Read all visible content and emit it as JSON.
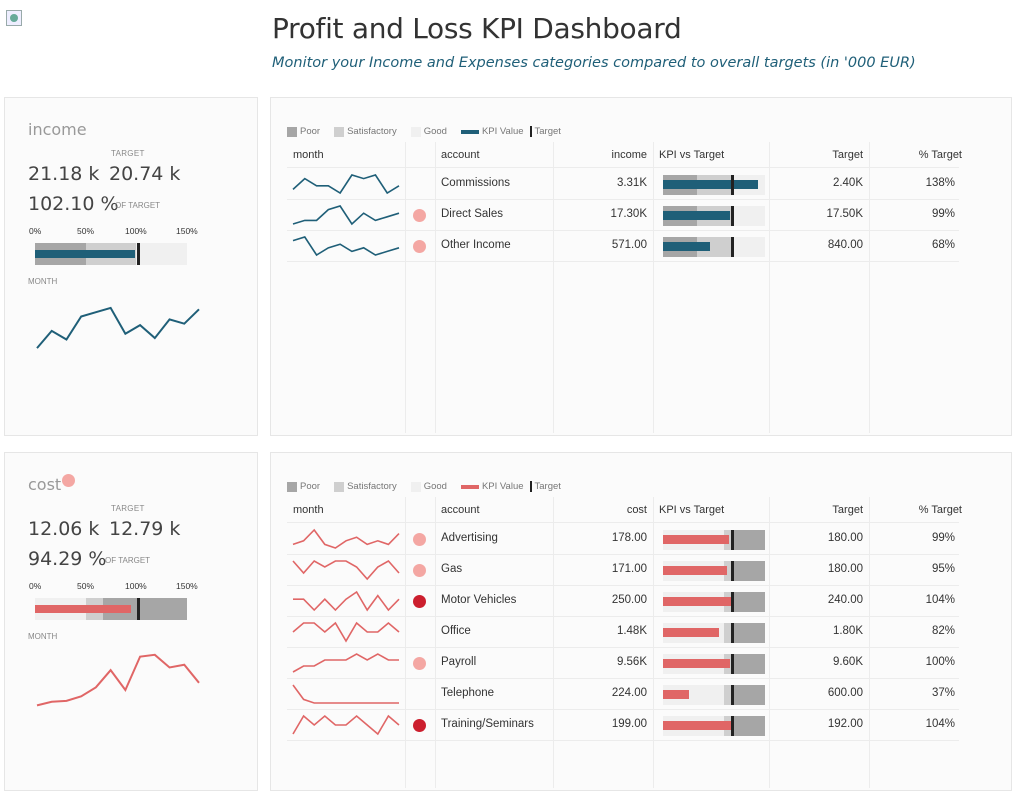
{
  "page": {
    "title": "Profit and Loss KPI Dashboard",
    "subtitle": "Monitor your Income and Expenses categories compared to overall targets (in '000 EUR)"
  },
  "colors": {
    "income": "#1f5f78",
    "cost": "#e06666",
    "poor": "#a6a6a6",
    "satisfactory": "#cfcfcf",
    "good": "#f0f0f0",
    "dot_light": "#f4a7a3",
    "dot_dark": "#cc1f2e"
  },
  "legend": {
    "poor": "Poor",
    "satisfactory": "Satisfactory",
    "good": "Good",
    "kpi_value": "KPI Value",
    "target": "Target"
  },
  "income_card": {
    "title": "income",
    "target_label": "TARGET",
    "value": "21.18 k",
    "target": "20.74 k",
    "pct": "102.10 %",
    "of_target": "OF TARGET",
    "ticks": [
      "0%",
      "50%",
      "100%",
      "150%"
    ],
    "month_label": "MONTH",
    "bullet": {
      "poor": 0.5,
      "satisfactory": 1.0,
      "value": 0.66,
      "target": 0.67
    },
    "trend": [
      30,
      42,
      36,
      52,
      55,
      58,
      40,
      46,
      37,
      50,
      47,
      57
    ]
  },
  "cost_card": {
    "title": "cost",
    "target_label": "TARGET",
    "value": "12.06 k",
    "target": "12.79 k",
    "pct": "94.29 %",
    "of_target": "OF TARGET",
    "ticks": [
      "0%",
      "50%",
      "100%",
      "150%"
    ],
    "month_label": "MONTH",
    "bullet": {
      "poor": 1.0,
      "satisfactory": 0.67,
      "value": 0.63,
      "target": 0.67
    },
    "trend": [
      40,
      44,
      45,
      50,
      60,
      79,
      57,
      94,
      96,
      82,
      85,
      65
    ]
  },
  "income_table": {
    "headers": {
      "month": "month",
      "account": "account",
      "value": "income",
      "kpi": "KPI vs Target",
      "target": "Target",
      "pct": "% Target"
    },
    "rows": [
      {
        "account": "Commissions",
        "value": "3.31K",
        "target": "2.40K",
        "pct": "138%",
        "dot": "",
        "bullet": {
          "poor": 0.33,
          "sat": 0.67,
          "good": 1.0,
          "value": 0.93,
          "target": 0.67
        },
        "spark": [
          3,
          6,
          4,
          4,
          2,
          7,
          6,
          7,
          2,
          4
        ]
      },
      {
        "account": "Direct Sales",
        "value": "17.30K",
        "target": "17.50K",
        "pct": "99%",
        "dot": "light",
        "bullet": {
          "poor": 0.33,
          "sat": 0.67,
          "good": 1.0,
          "value": 0.66,
          "target": 0.67
        },
        "spark": [
          2,
          3,
          3,
          6,
          7,
          2,
          5,
          3,
          4,
          5
        ]
      },
      {
        "account": "Other Income",
        "value": "571.00",
        "target": "840.00",
        "pct": "68%",
        "dot": "light",
        "bullet": {
          "poor": 0.33,
          "sat": 0.67,
          "good": 1.0,
          "value": 0.46,
          "target": 0.67
        },
        "spark": [
          6,
          7,
          2,
          4,
          5,
          3,
          4,
          2,
          3,
          4
        ]
      }
    ]
  },
  "cost_table": {
    "headers": {
      "month": "month",
      "account": "account",
      "value": "cost",
      "kpi": "KPI vs Target",
      "target": "Target",
      "pct": "% Target"
    },
    "rows": [
      {
        "account": "Advertising",
        "value": "178.00",
        "target": "180.00",
        "pct": "99%",
        "dot": "light",
        "bullet": {
          "good": 0.6,
          "sat": 0.67,
          "poor": 1.0,
          "value": 0.65,
          "target": 0.67
        },
        "spark": [
          3,
          4,
          7,
          3,
          2,
          4,
          5,
          3,
          4,
          3,
          6
        ]
      },
      {
        "account": "Gas",
        "value": "171.00",
        "target": "180.00",
        "pct": "95%",
        "dot": "light",
        "bullet": {
          "good": 0.6,
          "sat": 0.67,
          "poor": 1.0,
          "value": 0.63,
          "target": 0.67
        },
        "spark": [
          5,
          3,
          5,
          4,
          5,
          5,
          4,
          2,
          4,
          5,
          3
        ]
      },
      {
        "account": "Motor Vehicles",
        "value": "250.00",
        "target": "240.00",
        "pct": "104%",
        "dot": "dark",
        "bullet": {
          "good": 0.6,
          "sat": 0.67,
          "poor": 1.0,
          "value": 0.68,
          "target": 0.67
        },
        "spark": [
          5,
          5,
          2,
          5,
          2,
          5,
          7,
          2,
          6,
          2,
          5
        ]
      },
      {
        "account": "Office",
        "value": "1.48K",
        "target": "1.80K",
        "pct": "82%",
        "dot": "",
        "bullet": {
          "good": 0.6,
          "sat": 0.67,
          "poor": 1.0,
          "value": 0.55,
          "target": 0.67
        },
        "spark": [
          4,
          5,
          5,
          4,
          5,
          3,
          5,
          4,
          4,
          5,
          4
        ]
      },
      {
        "account": "Payroll",
        "value": "9.56K",
        "target": "9.60K",
        "pct": "100%",
        "dot": "light",
        "bullet": {
          "good": 0.6,
          "sat": 0.67,
          "poor": 1.0,
          "value": 0.66,
          "target": 0.67
        },
        "spark": [
          3,
          4,
          4,
          5,
          5,
          5,
          6,
          5,
          6,
          5,
          5
        ]
      },
      {
        "account": "Telephone",
        "value": "224.00",
        "target": "600.00",
        "pct": "37%",
        "dot": "",
        "bullet": {
          "good": 0.6,
          "sat": 0.67,
          "poor": 1.0,
          "value": 0.25,
          "target": 0.67
        },
        "spark": [
          7,
          3,
          2,
          2,
          2,
          2,
          2,
          2,
          2,
          2,
          2
        ]
      },
      {
        "account": "Training/Seminars",
        "value": "199.00",
        "target": "192.00",
        "pct": "104%",
        "dot": "dark",
        "bullet": {
          "good": 0.6,
          "sat": 0.67,
          "poor": 1.0,
          "value": 0.68,
          "target": 0.67
        },
        "spark": [
          3,
          5,
          4,
          5,
          4,
          4,
          5,
          4,
          3,
          5,
          4
        ]
      }
    ]
  }
}
